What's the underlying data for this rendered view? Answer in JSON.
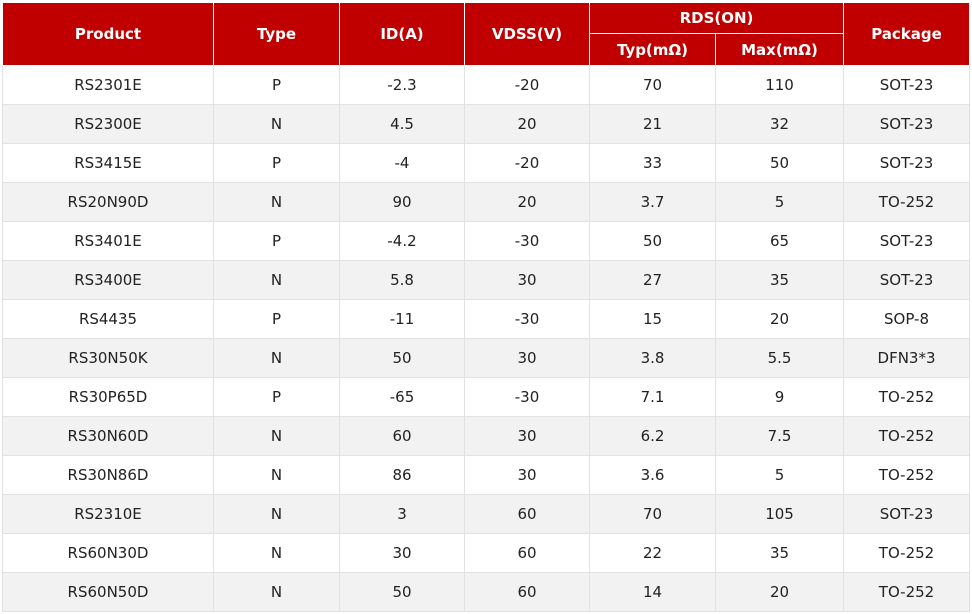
{
  "header": {
    "product": "Product",
    "type": "Type",
    "id": "ID(A)",
    "vdss": "VDSS(V)",
    "rds": "RDS(ON)",
    "typ": "Typ(mΩ)",
    "max": "Max(mΩ)",
    "package": "Package"
  },
  "colors": {
    "header_bg": "#c00000",
    "alt_row": "#f2f2f2"
  },
  "rows": [
    [
      "RS2301E",
      "P",
      "-2.3",
      "-20",
      "70",
      "110",
      "SOT-23"
    ],
    [
      "RS2300E",
      "N",
      "4.5",
      "20",
      "21",
      "32",
      "SOT-23"
    ],
    [
      "RS3415E",
      "P",
      "-4",
      "-20",
      "33",
      "50",
      "SOT-23"
    ],
    [
      "RS20N90D",
      "N",
      "90",
      "20",
      "3.7",
      "5",
      "TO-252"
    ],
    [
      "RS3401E",
      "P",
      "-4.2",
      "-30",
      "50",
      "65",
      "SOT-23"
    ],
    [
      "RS3400E",
      "N",
      "5.8",
      "30",
      "27",
      "35",
      "SOT-23"
    ],
    [
      "RS4435",
      "P",
      "-11",
      "-30",
      "15",
      "20",
      "SOP-8"
    ],
    [
      "RS30N50K",
      "N",
      "50",
      "30",
      "3.8",
      "5.5",
      "DFN3*3"
    ],
    [
      "RS30P65D",
      "P",
      "-65",
      "-30",
      "7.1",
      "9",
      "TO-252"
    ],
    [
      "RS30N60D",
      "N",
      "60",
      "30",
      "6.2",
      "7.5",
      "TO-252"
    ],
    [
      "RS30N86D",
      "N",
      "86",
      "30",
      "3.6",
      "5",
      "TO-252"
    ],
    [
      "RS2310E",
      "N",
      "3",
      "60",
      "70",
      "105",
      "SOT-23"
    ],
    [
      "RS60N30D",
      "N",
      "30",
      "60",
      "22",
      "35",
      "TO-252"
    ],
    [
      "RS60N50D",
      "N",
      "50",
      "60",
      "14",
      "20",
      "TO-252"
    ]
  ]
}
